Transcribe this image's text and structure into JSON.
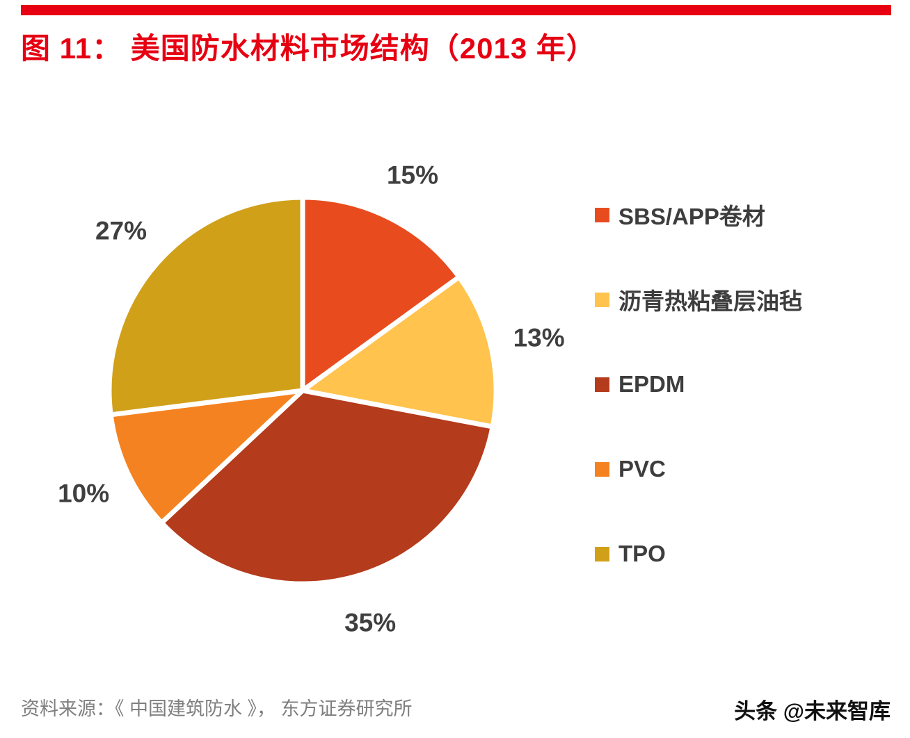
{
  "page": {
    "title": "图  11： 美国防水材料市场结构（2013 年）",
    "accent_color": "#e60012",
    "source": "资料来源：《 中国建筑防水 》， 东方证券研究所",
    "watermark": "头条 @未来智库"
  },
  "chart_data": {
    "type": "pie",
    "title": "美国防水材料市场结构（2013 年）",
    "legend_position": "right",
    "start_angle_deg": 0,
    "direction": "clockwise",
    "label_color": "#3f3f3f",
    "slices": [
      {
        "label": "SBS/APP卷材",
        "value": 15,
        "display": "15%",
        "color": "#e84c1e"
      },
      {
        "label": "沥青热粘叠层油毡",
        "value": 13,
        "display": "13%",
        "color": "#ffc34e"
      },
      {
        "label": "EPDM",
        "value": 35,
        "display": "35%",
        "color": "#b43b1b"
      },
      {
        "label": "PVC",
        "value": 10,
        "display": "10%",
        "color": "#f58220"
      },
      {
        "label": "TPO",
        "value": 27,
        "display": "27%",
        "color": "#d1a019"
      }
    ]
  }
}
